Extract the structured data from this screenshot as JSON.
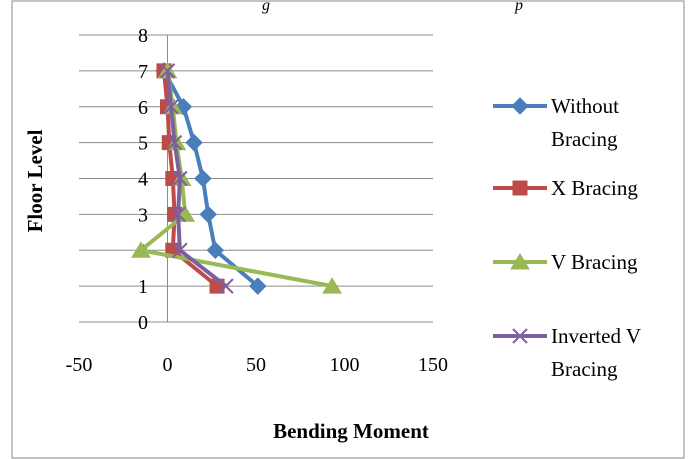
{
  "header": {
    "caption": "g",
    "caption_right": "p"
  },
  "chart_data": {
    "type": "line",
    "xlabel": "Bending Moment",
    "ylabel": "Floor Level",
    "xlim": [
      -50,
      150
    ],
    "ylim": [
      0,
      8
    ],
    "x_ticks": [
      -50,
      0,
      50,
      100,
      150
    ],
    "y_ticks": [
      0,
      1,
      2,
      3,
      4,
      5,
      6,
      7,
      8
    ],
    "grid": "horizontal",
    "legend_position": "right",
    "series": [
      {
        "name": "Without Bracing",
        "legend_lines": [
          "Without",
          "Bracing"
        ],
        "marker": "diamond",
        "color": "#4a7ebb",
        "points": [
          [
            51,
            1
          ],
          [
            27,
            2
          ],
          [
            23,
            3
          ],
          [
            20,
            4
          ],
          [
            15,
            5
          ],
          [
            9,
            6
          ],
          [
            -2,
            7
          ]
        ]
      },
      {
        "name": "X Bracing",
        "legend_lines": [
          "X Bracing"
        ],
        "marker": "square",
        "color": "#be4b48",
        "points": [
          [
            28,
            1
          ],
          [
            3,
            2
          ],
          [
            4,
            3
          ],
          [
            3,
            4
          ],
          [
            1,
            5
          ],
          [
            0,
            6
          ],
          [
            -2,
            7
          ]
        ]
      },
      {
        "name": "V Bracing",
        "legend_lines": [
          "V Bracing"
        ],
        "marker": "triangle",
        "color": "#98b954",
        "points": [
          [
            93,
            1
          ],
          [
            -15,
            2
          ],
          [
            10,
            3
          ],
          [
            8,
            4
          ],
          [
            5,
            5
          ],
          [
            3,
            6
          ],
          [
            0,
            7
          ]
        ]
      },
      {
        "name": "Inverted V Bracing",
        "legend_lines": [
          "Inverted V",
          "Bracing"
        ],
        "marker": "x",
        "color": "#7d60a0",
        "points": [
          [
            33,
            1
          ],
          [
            7,
            2
          ],
          [
            6,
            3
          ],
          [
            7,
            4
          ],
          [
            4,
            5
          ],
          [
            2,
            6
          ],
          [
            0,
            7
          ]
        ]
      }
    ]
  }
}
